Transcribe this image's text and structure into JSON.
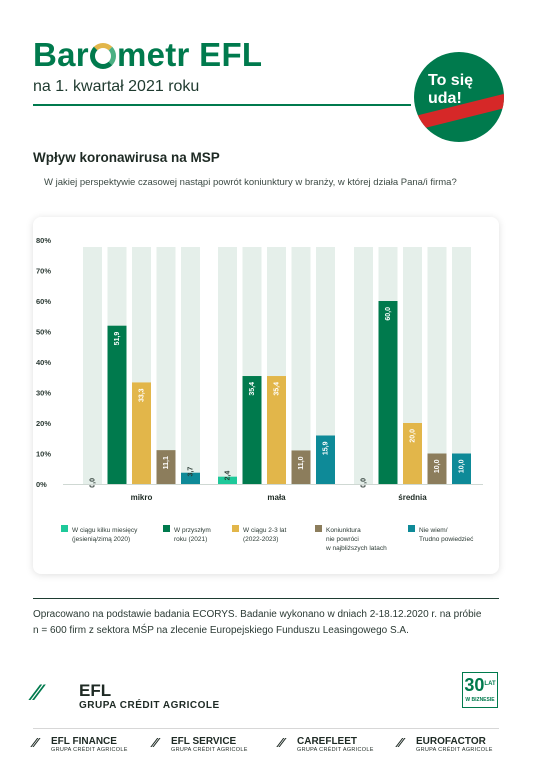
{
  "header": {
    "brand_left": "Bar",
    "brand_right": "metr EFL",
    "subtitle": "na 1. kwartał 2021 roku",
    "badge_line1": "To się",
    "badge_line2": "uda!"
  },
  "section": {
    "title": "Wpływ koronawirusa na MSP",
    "question": "W jakiej perspektywie czasowej nastąpi powrót koniunktury w branży, w której działa Pana/i firma?"
  },
  "chart_data": {
    "type": "bar",
    "categories": [
      "mikro",
      "mała",
      "średnia"
    ],
    "ylim": [
      0,
      80
    ],
    "yticks": [
      "0%",
      "10%",
      "20%",
      "30%",
      "40%",
      "50%",
      "60%",
      "70%",
      "80%"
    ],
    "series": [
      {
        "name": "W ciągu kilku miesięcy (jesienią/zimą 2020)",
        "legend_lines": [
          "W ciągu kilku miesięcy",
          "(jesienią/zimą 2020)"
        ],
        "color": "#1ec99a",
        "values": [
          0.0,
          2.4,
          0.0
        ],
        "labels": [
          "0,0",
          "2,4",
          "0,0"
        ]
      },
      {
        "name": "W przyszłym roku (2021)",
        "legend_lines": [
          "W przyszłym",
          "roku (2021)"
        ],
        "color": "#007a4d",
        "values": [
          51.9,
          35.4,
          60.0
        ],
        "labels": [
          "51,9",
          "35,4",
          "60,0"
        ]
      },
      {
        "name": "W ciągu 2-3 lat (2022-2023)",
        "legend_lines": [
          "W ciągu 2-3 lat",
          "(2022-2023)"
        ],
        "color": "#e2b64a",
        "values": [
          33.3,
          35.4,
          20.0
        ],
        "labels": [
          "33,3",
          "35,4",
          "20,0"
        ]
      },
      {
        "name": "Koniunktura nie powróci w najbliższych latach",
        "legend_lines": [
          "Koniunktura",
          "nie powróci",
          "w najbliższych latach"
        ],
        "color": "#8c7d5c",
        "values": [
          11.1,
          11.0,
          10.0
        ],
        "labels": [
          "11,1",
          "11,0",
          "10,0"
        ]
      },
      {
        "name": "Nie wiem/ Trudno powiedzieć",
        "legend_lines": [
          "Nie wiem/",
          "Trudno powiedzieć"
        ],
        "color": "#0e8a98",
        "values": [
          3.7,
          15.9,
          10.0
        ],
        "labels": [
          "3,7",
          "15,9",
          "10,0"
        ]
      }
    ],
    "background_bar_color": "#e5efea",
    "grid": false,
    "legend_position": "bottom"
  },
  "source": {
    "line1": "Opracowano na podstawie badania ECORYS. Badanie wykonano w dniach 2-18.12.2020 r. na próbie",
    "line2": "n = 600 firm z sektora MŚP na zlecenie Europejskiego Funduszu Leasingowego S.A."
  },
  "footer": {
    "efl_logo_main": "EFL",
    "efl_logo_sub": "GRUPA CRÉDIT AGRICOLE",
    "anniversary_number": "30",
    "anniversary_lat": "LAT",
    "anniversary_sub": "W BIZNESIE",
    "group_sub": "GRUPA CRÉDIT AGRICOLE",
    "companies": [
      "EFL FINANCE",
      "EFL SERVICE",
      "CAREFLEET",
      "EUROFACTOR"
    ]
  }
}
